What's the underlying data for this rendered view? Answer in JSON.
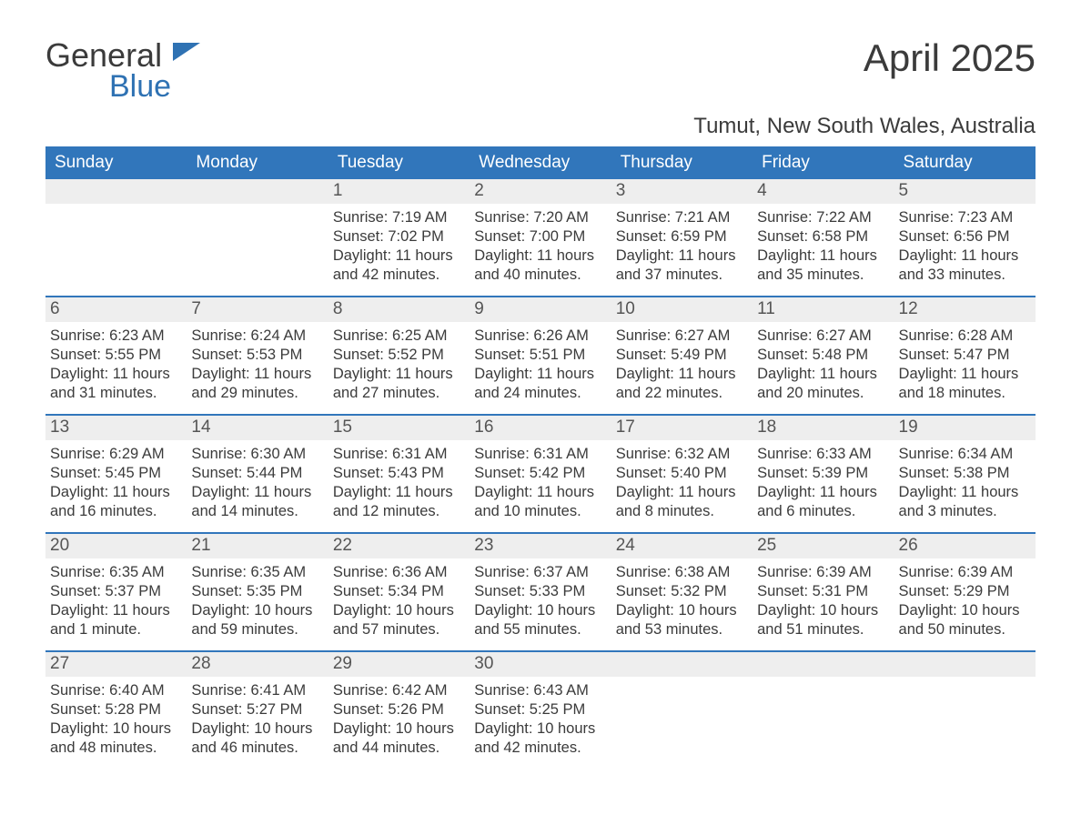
{
  "brand": {
    "text1": "General",
    "text2": "Blue"
  },
  "title": "April 2025",
  "location": "Tumut, New South Wales, Australia",
  "colors": {
    "header_bg": "#3176bb",
    "header_text": "#ffffff",
    "date_bg": "#eeeeee",
    "text": "#3b3b3b",
    "divider": "#3176bb",
    "brand_blue": "#2f72b3"
  },
  "day_names": [
    "Sunday",
    "Monday",
    "Tuesday",
    "Wednesday",
    "Thursday",
    "Friday",
    "Saturday"
  ],
  "weeks": [
    [
      {
        "date": "",
        "sunrise": "",
        "sunset": "",
        "daylight": ""
      },
      {
        "date": "",
        "sunrise": "",
        "sunset": "",
        "daylight": ""
      },
      {
        "date": "1",
        "sunrise": "Sunrise: 7:19 AM",
        "sunset": "Sunset: 7:02 PM",
        "daylight": "Daylight: 11 hours and 42 minutes."
      },
      {
        "date": "2",
        "sunrise": "Sunrise: 7:20 AM",
        "sunset": "Sunset: 7:00 PM",
        "daylight": "Daylight: 11 hours and 40 minutes."
      },
      {
        "date": "3",
        "sunrise": "Sunrise: 7:21 AM",
        "sunset": "Sunset: 6:59 PM",
        "daylight": "Daylight: 11 hours and 37 minutes."
      },
      {
        "date": "4",
        "sunrise": "Sunrise: 7:22 AM",
        "sunset": "Sunset: 6:58 PM",
        "daylight": "Daylight: 11 hours and 35 minutes."
      },
      {
        "date": "5",
        "sunrise": "Sunrise: 7:23 AM",
        "sunset": "Sunset: 6:56 PM",
        "daylight": "Daylight: 11 hours and 33 minutes."
      }
    ],
    [
      {
        "date": "6",
        "sunrise": "Sunrise: 6:23 AM",
        "sunset": "Sunset: 5:55 PM",
        "daylight": "Daylight: 11 hours and 31 minutes."
      },
      {
        "date": "7",
        "sunrise": "Sunrise: 6:24 AM",
        "sunset": "Sunset: 5:53 PM",
        "daylight": "Daylight: 11 hours and 29 minutes."
      },
      {
        "date": "8",
        "sunrise": "Sunrise: 6:25 AM",
        "sunset": "Sunset: 5:52 PM",
        "daylight": "Daylight: 11 hours and 27 minutes."
      },
      {
        "date": "9",
        "sunrise": "Sunrise: 6:26 AM",
        "sunset": "Sunset: 5:51 PM",
        "daylight": "Daylight: 11 hours and 24 minutes."
      },
      {
        "date": "10",
        "sunrise": "Sunrise: 6:27 AM",
        "sunset": "Sunset: 5:49 PM",
        "daylight": "Daylight: 11 hours and 22 minutes."
      },
      {
        "date": "11",
        "sunrise": "Sunrise: 6:27 AM",
        "sunset": "Sunset: 5:48 PM",
        "daylight": "Daylight: 11 hours and 20 minutes."
      },
      {
        "date": "12",
        "sunrise": "Sunrise: 6:28 AM",
        "sunset": "Sunset: 5:47 PM",
        "daylight": "Daylight: 11 hours and 18 minutes."
      }
    ],
    [
      {
        "date": "13",
        "sunrise": "Sunrise: 6:29 AM",
        "sunset": "Sunset: 5:45 PM",
        "daylight": "Daylight: 11 hours and 16 minutes."
      },
      {
        "date": "14",
        "sunrise": "Sunrise: 6:30 AM",
        "sunset": "Sunset: 5:44 PM",
        "daylight": "Daylight: 11 hours and 14 minutes."
      },
      {
        "date": "15",
        "sunrise": "Sunrise: 6:31 AM",
        "sunset": "Sunset: 5:43 PM",
        "daylight": "Daylight: 11 hours and 12 minutes."
      },
      {
        "date": "16",
        "sunrise": "Sunrise: 6:31 AM",
        "sunset": "Sunset: 5:42 PM",
        "daylight": "Daylight: 11 hours and 10 minutes."
      },
      {
        "date": "17",
        "sunrise": "Sunrise: 6:32 AM",
        "sunset": "Sunset: 5:40 PM",
        "daylight": "Daylight: 11 hours and 8 minutes."
      },
      {
        "date": "18",
        "sunrise": "Sunrise: 6:33 AM",
        "sunset": "Sunset: 5:39 PM",
        "daylight": "Daylight: 11 hours and 6 minutes."
      },
      {
        "date": "19",
        "sunrise": "Sunrise: 6:34 AM",
        "sunset": "Sunset: 5:38 PM",
        "daylight": "Daylight: 11 hours and 3 minutes."
      }
    ],
    [
      {
        "date": "20",
        "sunrise": "Sunrise: 6:35 AM",
        "sunset": "Sunset: 5:37 PM",
        "daylight": "Daylight: 11 hours and 1 minute."
      },
      {
        "date": "21",
        "sunrise": "Sunrise: 6:35 AM",
        "sunset": "Sunset: 5:35 PM",
        "daylight": "Daylight: 10 hours and 59 minutes."
      },
      {
        "date": "22",
        "sunrise": "Sunrise: 6:36 AM",
        "sunset": "Sunset: 5:34 PM",
        "daylight": "Daylight: 10 hours and 57 minutes."
      },
      {
        "date": "23",
        "sunrise": "Sunrise: 6:37 AM",
        "sunset": "Sunset: 5:33 PM",
        "daylight": "Daylight: 10 hours and 55 minutes."
      },
      {
        "date": "24",
        "sunrise": "Sunrise: 6:38 AM",
        "sunset": "Sunset: 5:32 PM",
        "daylight": "Daylight: 10 hours and 53 minutes."
      },
      {
        "date": "25",
        "sunrise": "Sunrise: 6:39 AM",
        "sunset": "Sunset: 5:31 PM",
        "daylight": "Daylight: 10 hours and 51 minutes."
      },
      {
        "date": "26",
        "sunrise": "Sunrise: 6:39 AM",
        "sunset": "Sunset: 5:29 PM",
        "daylight": "Daylight: 10 hours and 50 minutes."
      }
    ],
    [
      {
        "date": "27",
        "sunrise": "Sunrise: 6:40 AM",
        "sunset": "Sunset: 5:28 PM",
        "daylight": "Daylight: 10 hours and 48 minutes."
      },
      {
        "date": "28",
        "sunrise": "Sunrise: 6:41 AM",
        "sunset": "Sunset: 5:27 PM",
        "daylight": "Daylight: 10 hours and 46 minutes."
      },
      {
        "date": "29",
        "sunrise": "Sunrise: 6:42 AM",
        "sunset": "Sunset: 5:26 PM",
        "daylight": "Daylight: 10 hours and 44 minutes."
      },
      {
        "date": "30",
        "sunrise": "Sunrise: 6:43 AM",
        "sunset": "Sunset: 5:25 PM",
        "daylight": "Daylight: 10 hours and 42 minutes."
      },
      {
        "date": "",
        "sunrise": "",
        "sunset": "",
        "daylight": ""
      },
      {
        "date": "",
        "sunrise": "",
        "sunset": "",
        "daylight": ""
      },
      {
        "date": "",
        "sunrise": "",
        "sunset": "",
        "daylight": ""
      }
    ]
  ]
}
